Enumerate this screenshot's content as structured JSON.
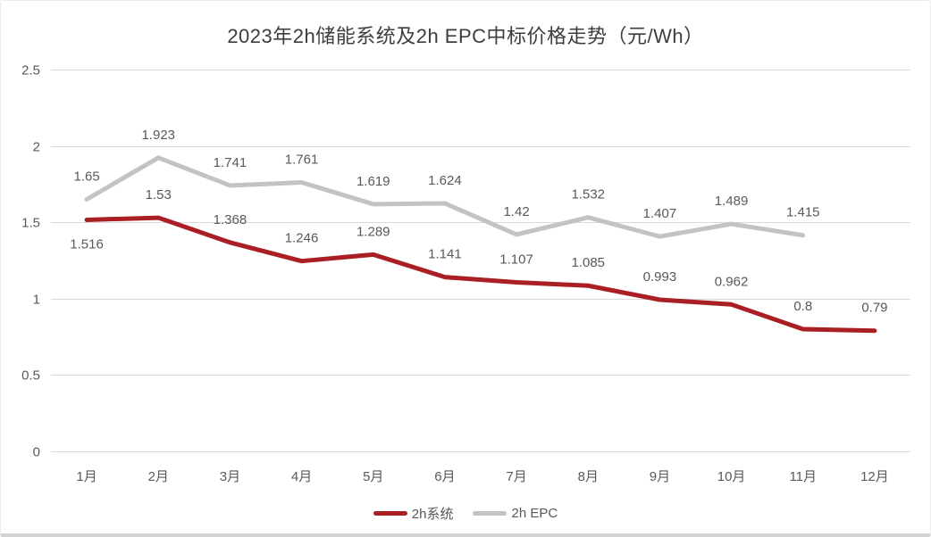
{
  "title": "2023年2h储能系统及2h EPC中标价格走势（元/Wh）",
  "chart_data": {
    "type": "line",
    "title": "2023年2h储能系统及2h EPC中标价格走势（元/Wh）",
    "categories": [
      "1月",
      "2月",
      "3月",
      "4月",
      "5月",
      "6月",
      "7月",
      "8月",
      "9月",
      "10月",
      "11月",
      "12月"
    ],
    "series": [
      {
        "name": "2h系统",
        "color": "#aa1f23",
        "values": [
          1.516,
          1.53,
          1.368,
          1.246,
          1.289,
          1.141,
          1.107,
          1.085,
          0.993,
          0.962,
          0.8,
          0.79
        ],
        "label_below_indices": [
          0
        ]
      },
      {
        "name": "2h EPC",
        "color": "#c3c3c3",
        "values": [
          1.65,
          1.923,
          1.741,
          1.761,
          1.619,
          1.624,
          1.42,
          1.532,
          1.407,
          1.489,
          1.415
        ],
        "label_below_indices": []
      }
    ],
    "ylim": [
      0,
      2.5
    ],
    "yticks": [
      0,
      0.5,
      1,
      1.5,
      2,
      2.5
    ],
    "grid": true,
    "data_labels": true,
    "legend_position": "bottom",
    "unit": "元/Wh"
  },
  "colors": {
    "grid": "#d9d9d9",
    "label_text": "#595959",
    "title_text": "#3d3d3d"
  }
}
